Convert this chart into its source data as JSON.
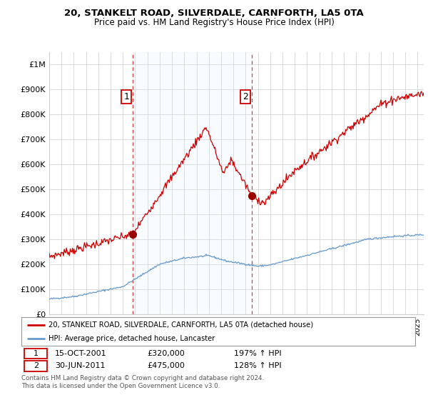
{
  "title": "20, STANKELT ROAD, SILVERDALE, CARNFORTH, LA5 0TA",
  "subtitle": "Price paid vs. HM Land Registry's House Price Index (HPI)",
  "red_label": "20, STANKELT ROAD, SILVERDALE, CARNFORTH, LA5 0TA (detached house)",
  "blue_label": "HPI: Average price, detached house, Lancaster",
  "sale1_date": "15-OCT-2001",
  "sale1_price": "£320,000",
  "sale1_hpi": "197% ↑ HPI",
  "sale2_date": "30-JUN-2011",
  "sale2_price": "£475,000",
  "sale2_hpi": "128% ↑ HPI",
  "footnote": "Contains HM Land Registry data © Crown copyright and database right 2024.\nThis data is licensed under the Open Government Licence v3.0.",
  "red_color": "#cc0000",
  "blue_color": "#6699cc",
  "shade_color": "#ddeeff",
  "vline_color": "#cc4444",
  "grid_color": "#cccccc",
  "background_color": "#ffffff",
  "ylim": [
    0,
    1050000
  ],
  "yticks": [
    0,
    100000,
    200000,
    300000,
    400000,
    500000,
    600000,
    700000,
    800000,
    900000,
    1000000
  ],
  "ytick_labels": [
    "£0",
    "£100K",
    "£200K",
    "£300K",
    "£400K",
    "£500K",
    "£600K",
    "£700K",
    "£800K",
    "£900K",
    "£1M"
  ],
  "sale1_x": 2001.79,
  "sale1_y": 320000,
  "sale2_x": 2011.49,
  "sale2_y": 475000,
  "xmin": 1995.0,
  "xmax": 2025.5
}
